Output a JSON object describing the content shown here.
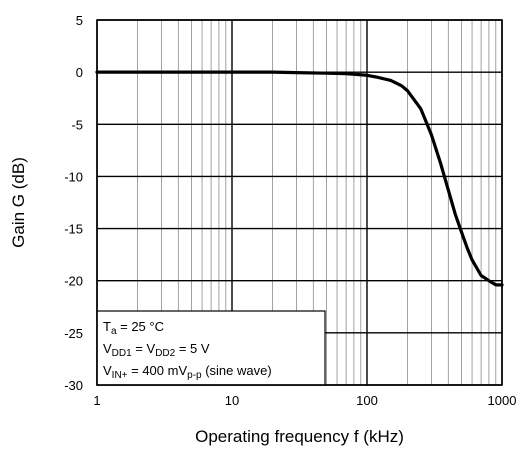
{
  "chart_data": {
    "type": "line",
    "title": "",
    "xlabel": "Operating frequency  f  (kHz)",
    "ylabel": "Gain  G  (dB)",
    "xscale": "log",
    "xlim": [
      1,
      1000
    ],
    "ylim": [
      -30,
      5
    ],
    "grid": true,
    "x_ticks": [
      1,
      10,
      100,
      1000
    ],
    "x_tick_labels": [
      "1",
      "10",
      "100",
      "1000"
    ],
    "y_ticks": [
      5,
      0,
      -5,
      -10,
      -15,
      -20,
      -25,
      -30
    ],
    "y_tick_labels": [
      "5",
      "0",
      "-5",
      "-10",
      "-15",
      "-20",
      "-25",
      "-30"
    ],
    "series": [
      {
        "color": "#000000",
        "x": [
          1,
          2,
          5,
          10,
          20,
          30,
          50,
          70,
          100,
          120,
          150,
          180,
          200,
          250,
          300,
          350,
          400,
          450,
          500,
          550,
          600,
          700,
          800,
          900,
          1000
        ],
        "y": [
          0,
          0,
          0,
          0,
          0,
          -0.05,
          -0.1,
          -0.15,
          -0.3,
          -0.5,
          -0.8,
          -1.3,
          -1.8,
          -3.5,
          -6.0,
          -8.7,
          -11.3,
          -13.6,
          -15.3,
          -16.8,
          -18.0,
          -19.5,
          -20.0,
          -20.4,
          -20.4
        ]
      }
    ],
    "annotation": {
      "line1": {
        "base": "T",
        "sub": "a",
        "rest": " = 25 °C"
      },
      "line2": {
        "base1": "V",
        "sub1": "DD1",
        "mid": " = V",
        "sub2": "DD2",
        "rest": " = 5 V"
      },
      "line3": {
        "base": "V",
        "sub1": "IN+",
        "mid": " = 400 mV",
        "sub2": "p-p",
        "rest": " (sine wave)"
      }
    }
  }
}
